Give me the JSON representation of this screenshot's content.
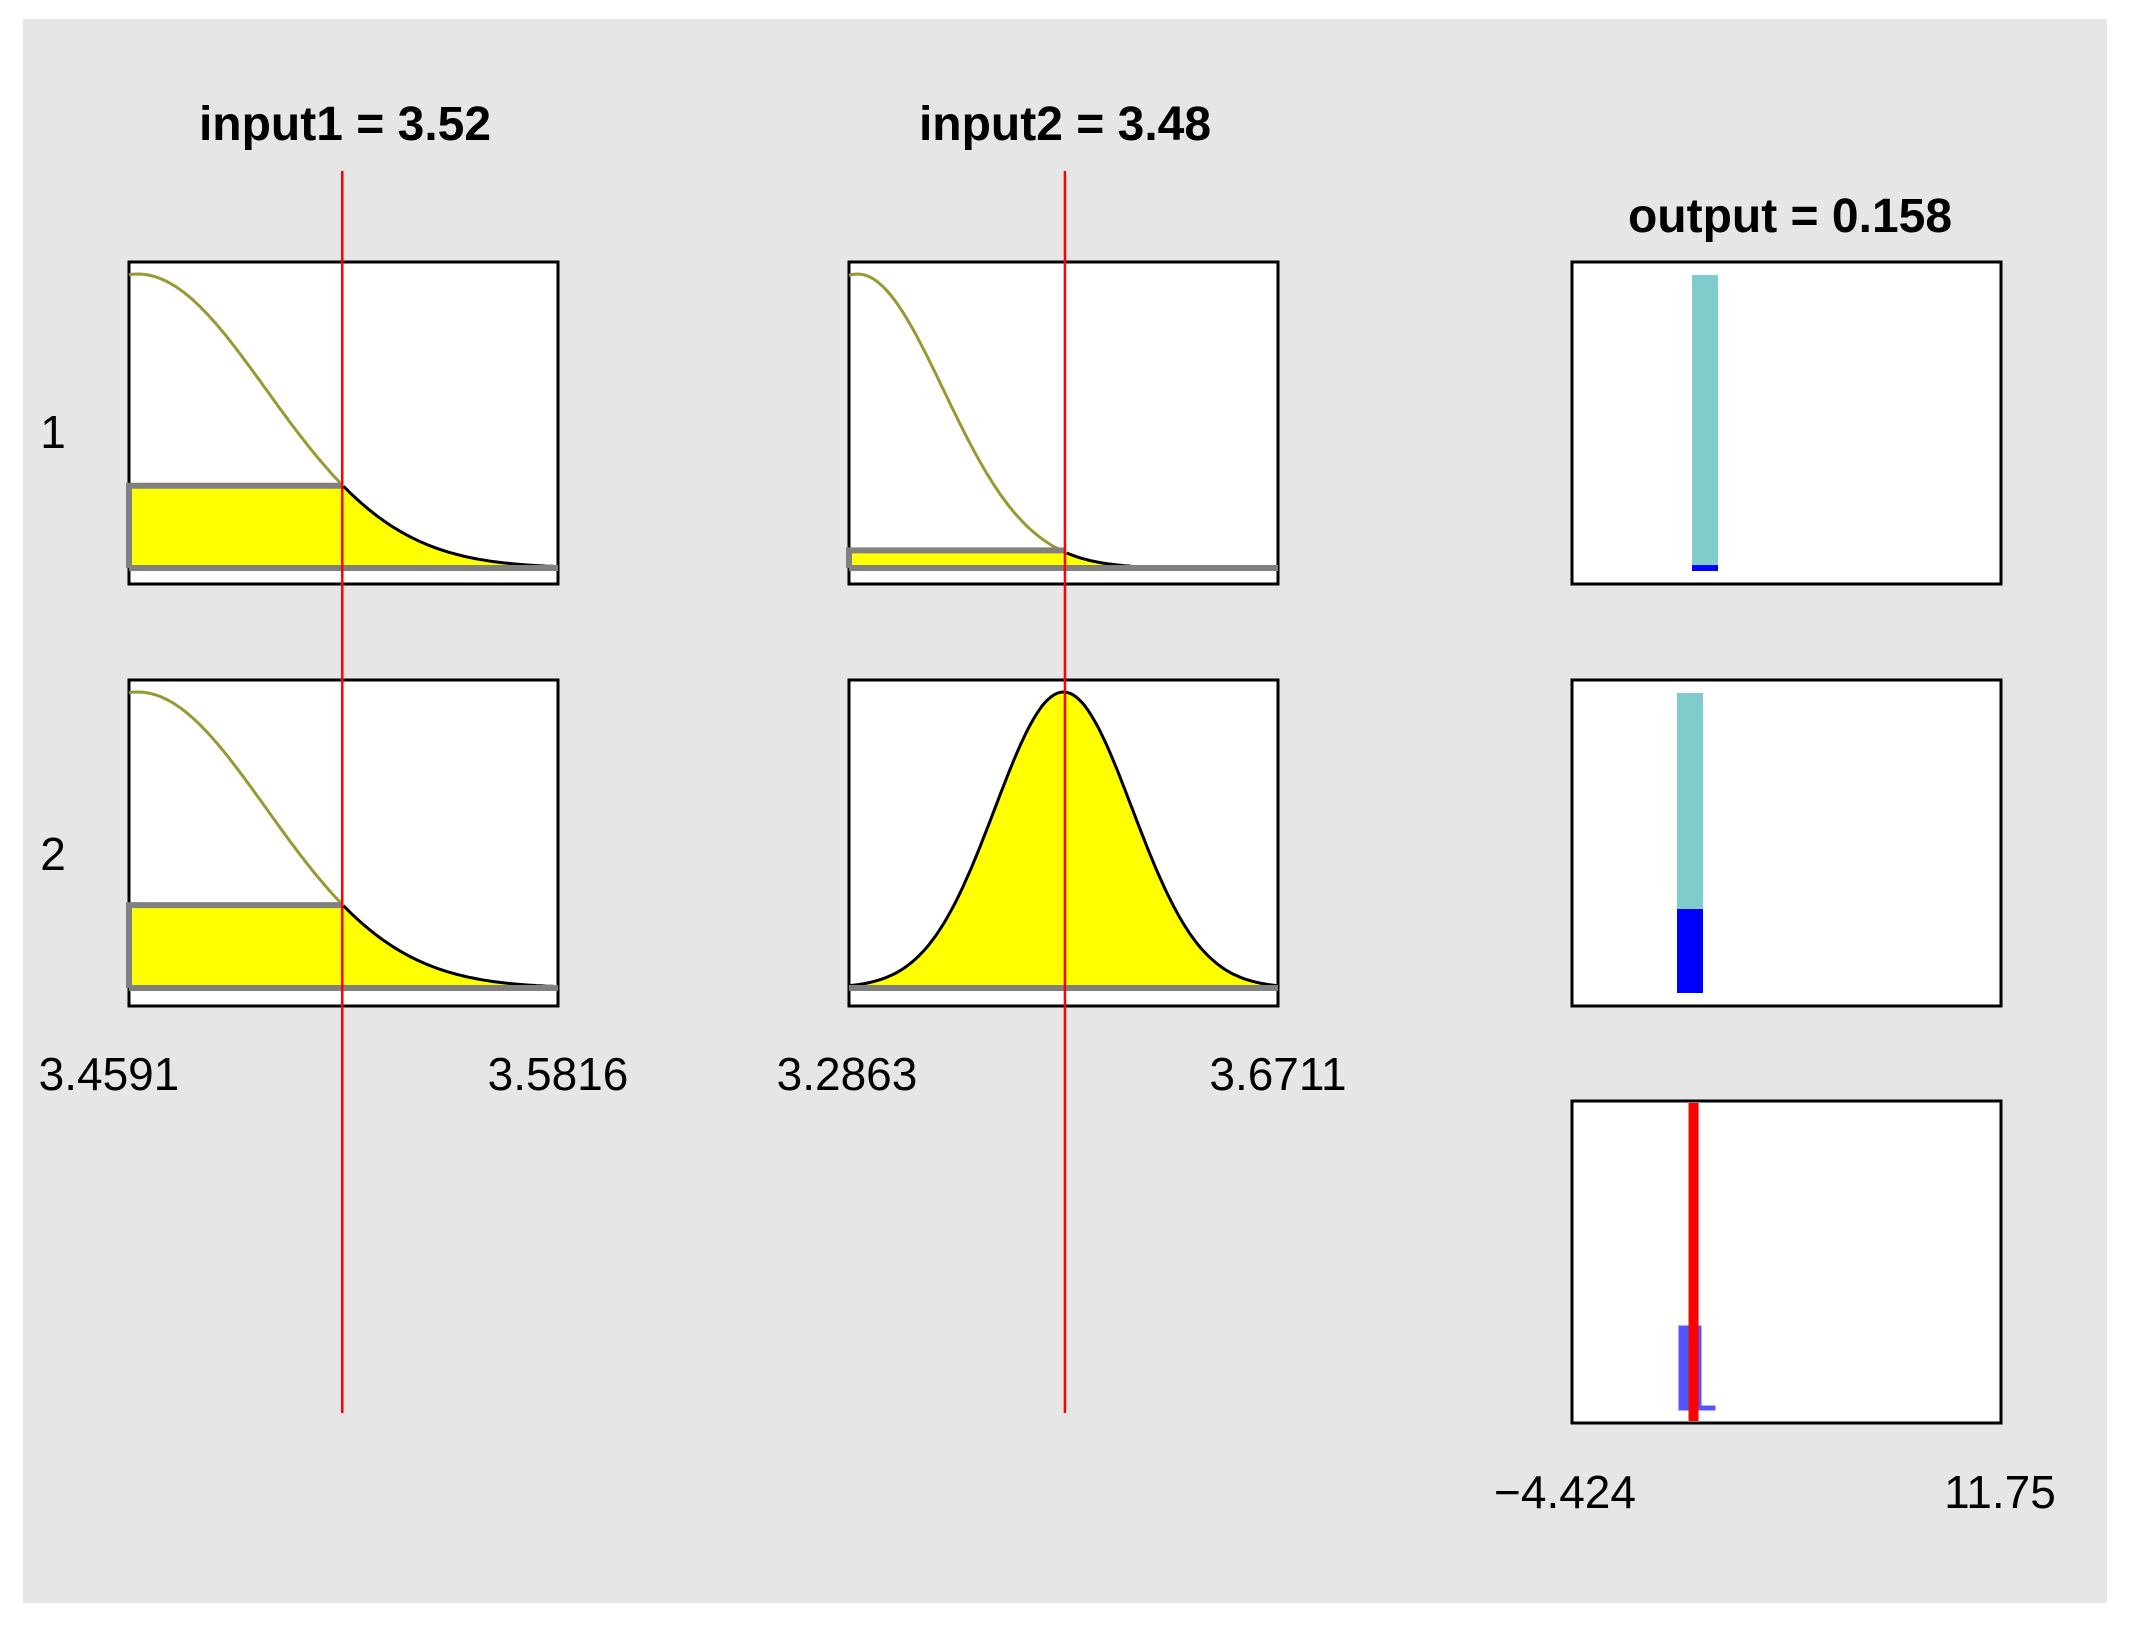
{
  "inputs": [
    {
      "name": "input1",
      "title": "input1 = 3.52",
      "value": 3.52,
      "range_min_label": "3.4591",
      "range_max_label": "3.5816",
      "range": [
        3.4591,
        3.5816
      ]
    },
    {
      "name": "input2",
      "title": "input2 = 3.48",
      "value": 3.48,
      "range_min_label": "3.2863",
      "range_max_label": "3.6711",
      "range": [
        3.2863,
        3.6711
      ]
    }
  ],
  "output": {
    "title": "output = 0.158",
    "value": 0.158,
    "range_min_label": "−4.424",
    "range_max_label": "11.75",
    "range": [
      -4.424,
      11.75
    ]
  },
  "rules": [
    {
      "label": "1",
      "input1_mf_value": 0.28,
      "input2_mf_value": 0.06,
      "firing_strength": 0.02
    },
    {
      "label": "2",
      "input1_mf_value": 0.28,
      "input2_mf_value": 1.0,
      "firing_strength": 0.28
    }
  ],
  "colors": {
    "panel": "#e6e6e6",
    "mf_fill": "#ffff00",
    "mf_outline": "#999933",
    "cursor": "#ff0000",
    "output_bar": "#80cccc",
    "output_fire": "#0000ff",
    "aggregate": "#5555ff"
  }
}
